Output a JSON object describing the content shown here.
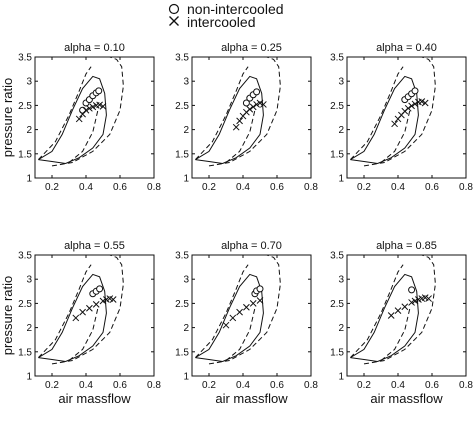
{
  "legend": {
    "placement": "top-center",
    "entries": [
      {
        "marker": "circle",
        "label": "non-intercooled"
      },
      {
        "marker": "cross",
        "label": "intercooled"
      }
    ]
  },
  "chart_data": [
    {
      "type": "scatter",
      "title": "alpha = 0.10",
      "xlabel": "",
      "ylabel": "pressure ratio",
      "xlim": [
        0.1,
        0.8
      ],
      "ylim": [
        1,
        3.5
      ],
      "xticks": [
        "0.2",
        "0.4",
        "0.6",
        "0.8"
      ],
      "yticks": [
        "1",
        "1.5",
        "2",
        "2.5",
        "3",
        "3.5"
      ],
      "grid": false,
      "series": [
        {
          "name": "non-intercooled",
          "marker": "circle",
          "x": [
            0.38,
            0.4,
            0.42,
            0.44,
            0.46,
            0.475
          ],
          "y": [
            2.4,
            2.55,
            2.62,
            2.7,
            2.76,
            2.8
          ]
        },
        {
          "name": "intercooled",
          "marker": "cross",
          "x": [
            0.36,
            0.38,
            0.4,
            0.42,
            0.44,
            0.46,
            0.48,
            0.5
          ],
          "y": [
            2.22,
            2.32,
            2.4,
            2.44,
            2.47,
            2.5,
            2.51,
            2.48
          ]
        }
      ]
    },
    {
      "type": "scatter",
      "title": "alpha = 0.25",
      "xlabel": "",
      "ylabel": "",
      "xlim": [
        0.1,
        0.8
      ],
      "ylim": [
        1,
        3.5
      ],
      "xticks": [
        "0.2",
        "0.4",
        "0.6",
        "0.8"
      ],
      "yticks": [
        "1",
        "1.5",
        "2",
        "2.5",
        "3",
        "3.5"
      ],
      "grid": false,
      "series": [
        {
          "name": "non-intercooled",
          "marker": "circle",
          "x": [
            0.42,
            0.44,
            0.46,
            0.48
          ],
          "y": [
            2.55,
            2.65,
            2.72,
            2.78
          ]
        },
        {
          "name": "intercooled",
          "marker": "cross",
          "x": [
            0.36,
            0.38,
            0.4,
            0.42,
            0.44,
            0.46,
            0.48,
            0.5,
            0.52
          ],
          "y": [
            2.05,
            2.18,
            2.28,
            2.36,
            2.42,
            2.47,
            2.52,
            2.55,
            2.52
          ]
        }
      ]
    },
    {
      "type": "scatter",
      "title": "alpha = 0.40",
      "xlabel": "",
      "ylabel": "",
      "xlim": [
        0.1,
        0.8
      ],
      "ylim": [
        1,
        3.5
      ],
      "xticks": [
        "0.2",
        "0.4",
        "0.6",
        "0.8"
      ],
      "yticks": [
        "1",
        "1.5",
        "2",
        "2.5",
        "3",
        "3.5"
      ],
      "grid": false,
      "series": [
        {
          "name": "non-intercooled",
          "marker": "circle",
          "x": [
            0.44,
            0.46,
            0.48,
            0.5
          ],
          "y": [
            2.62,
            2.68,
            2.74,
            2.8
          ]
        },
        {
          "name": "intercooled",
          "marker": "cross",
          "x": [
            0.38,
            0.4,
            0.42,
            0.44,
            0.46,
            0.48,
            0.5,
            0.52,
            0.54,
            0.56
          ],
          "y": [
            2.12,
            2.22,
            2.3,
            2.38,
            2.44,
            2.49,
            2.53,
            2.57,
            2.58,
            2.55
          ]
        }
      ]
    },
    {
      "type": "scatter",
      "title": "alpha = 0.55",
      "xlabel": "air massflow",
      "ylabel": "pressure ratio",
      "xlim": [
        0.1,
        0.8
      ],
      "ylim": [
        1,
        3.5
      ],
      "xticks": [
        "0.2",
        "0.4",
        "0.6",
        "0.8"
      ],
      "yticks": [
        "1",
        "1.5",
        "2",
        "2.5",
        "3",
        "3.5"
      ],
      "grid": false,
      "series": [
        {
          "name": "non-intercooled",
          "marker": "circle",
          "x": [
            0.44,
            0.46,
            0.48
          ],
          "y": [
            2.7,
            2.75,
            2.8
          ]
        },
        {
          "name": "intercooled",
          "marker": "cross",
          "x": [
            0.34,
            0.38,
            0.42,
            0.46,
            0.5,
            0.52,
            0.54,
            0.56
          ],
          "y": [
            2.2,
            2.32,
            2.4,
            2.48,
            2.55,
            2.58,
            2.6,
            2.58
          ]
        }
      ]
    },
    {
      "type": "scatter",
      "title": "alpha = 0.70",
      "xlabel": "air massflow",
      "ylabel": "",
      "xlim": [
        0.1,
        0.8
      ],
      "ylim": [
        1,
        3.5
      ],
      "xticks": [
        "0.2",
        "0.4",
        "0.6",
        "0.8"
      ],
      "yticks": [
        "1",
        "1.5",
        "2",
        "2.5",
        "3",
        "3.5"
      ],
      "grid": false,
      "series": [
        {
          "name": "non-intercooled",
          "marker": "circle",
          "x": [
            0.47,
            0.48,
            0.5
          ],
          "y": [
            2.7,
            2.76,
            2.8
          ]
        },
        {
          "name": "intercooled",
          "marker": "cross",
          "x": [
            0.3,
            0.34,
            0.38,
            0.42,
            0.46,
            0.5
          ],
          "y": [
            2.05,
            2.2,
            2.32,
            2.42,
            2.5,
            2.56
          ]
        }
      ]
    },
    {
      "type": "scatter",
      "title": "alpha = 0.85",
      "xlabel": "air massflow",
      "ylabel": "",
      "xlim": [
        0.1,
        0.8
      ],
      "ylim": [
        1,
        3.5
      ],
      "xticks": [
        "0.2",
        "0.4",
        "0.6",
        "0.8"
      ],
      "yticks": [
        "1",
        "1.5",
        "2",
        "2.5",
        "3",
        "3.5"
      ],
      "grid": false,
      "series": [
        {
          "name": "non-intercooled",
          "marker": "circle",
          "x": [
            0.48
          ],
          "y": [
            2.78
          ]
        },
        {
          "name": "intercooled",
          "marker": "cross",
          "x": [
            0.36,
            0.4,
            0.44,
            0.48,
            0.5,
            0.52,
            0.54,
            0.56,
            0.58
          ],
          "y": [
            2.25,
            2.35,
            2.43,
            2.52,
            2.55,
            2.58,
            2.6,
            2.62,
            2.6
          ]
        }
      ]
    }
  ]
}
